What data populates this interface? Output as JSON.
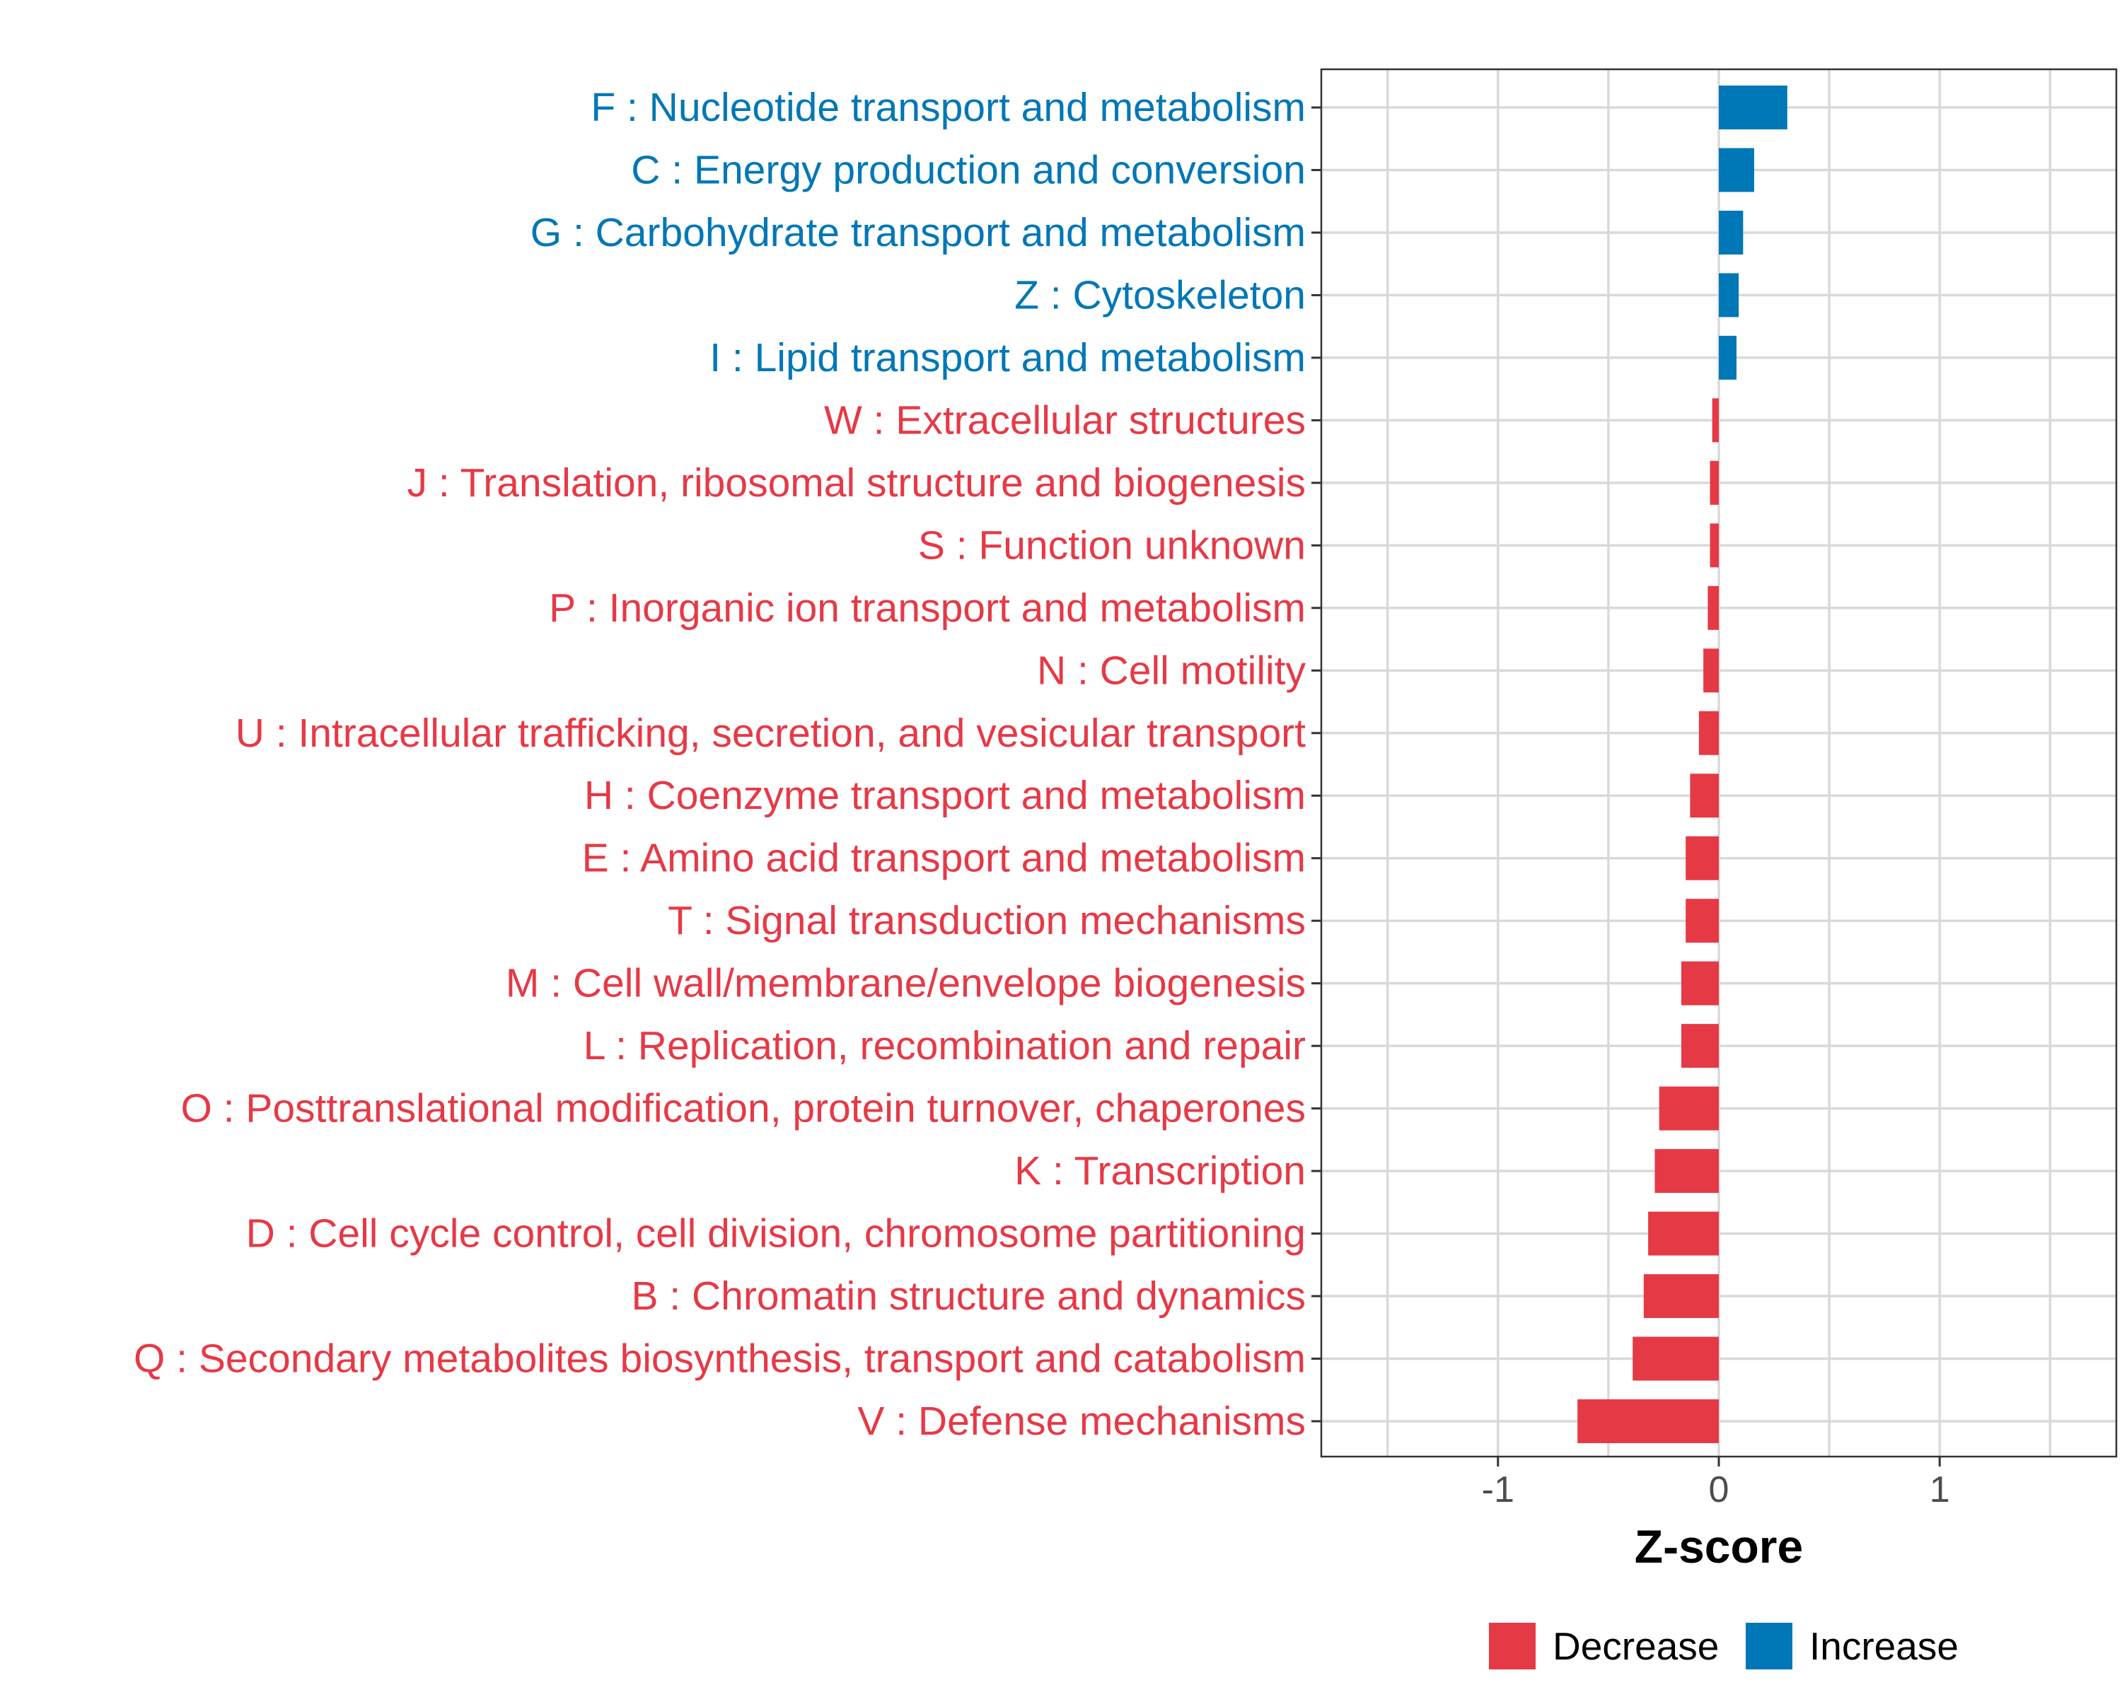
{
  "chart_data": {
    "type": "bar",
    "orientation": "horizontal",
    "title": "",
    "xlabel": "Z-score",
    "ylabel": "",
    "xlim": [
      -1.8,
      1.8
    ],
    "x_ticks": [
      -1,
      0,
      1
    ],
    "x_tick_labels": [
      "-1",
      "0",
      "1"
    ],
    "grid": true,
    "legend_position": "bottom",
    "colors": {
      "Decrease": "#e63946",
      "Increase": "#0077b6"
    },
    "legend": [
      {
        "label": "Decrease",
        "color": "#e63946"
      },
      {
        "label": "Increase",
        "color": "#0077b6"
      }
    ],
    "categories": [
      "F : Nucleotide transport and metabolism",
      "C : Energy production and conversion",
      "G : Carbohydrate transport and metabolism",
      "Z : Cytoskeleton",
      "I : Lipid transport and metabolism",
      "W : Extracellular structures",
      "J : Translation, ribosomal structure and biogenesis",
      "S : Function unknown",
      "P : Inorganic ion transport and metabolism",
      "N : Cell motility",
      "U : Intracellular trafficking, secretion, and vesicular transport",
      "H : Coenzyme transport and metabolism",
      "E : Amino acid transport and metabolism",
      "T : Signal transduction mechanisms",
      "M : Cell wall/membrane/envelope biogenesis",
      "L : Replication, recombination and repair",
      "O : Posttranslational modification, protein turnover, chaperones",
      "K : Transcription",
      "D : Cell cycle control, cell division, chromosome partitioning",
      "B : Chromatin structure and dynamics",
      "Q : Secondary metabolites biosynthesis, transport and catabolism",
      "V : Defense mechanisms"
    ],
    "values": [
      0.31,
      0.16,
      0.11,
      0.09,
      0.08,
      -0.03,
      -0.04,
      -0.04,
      -0.05,
      -0.07,
      -0.09,
      -0.13,
      -0.15,
      -0.15,
      -0.17,
      -0.17,
      -0.27,
      -0.29,
      -0.32,
      -0.34,
      -0.39,
      -0.64
    ],
    "groups": [
      "Increase",
      "Increase",
      "Increase",
      "Increase",
      "Increase",
      "Decrease",
      "Decrease",
      "Decrease",
      "Decrease",
      "Decrease",
      "Decrease",
      "Decrease",
      "Decrease",
      "Decrease",
      "Decrease",
      "Decrease",
      "Decrease",
      "Decrease",
      "Decrease",
      "Decrease",
      "Decrease",
      "Decrease"
    ]
  }
}
